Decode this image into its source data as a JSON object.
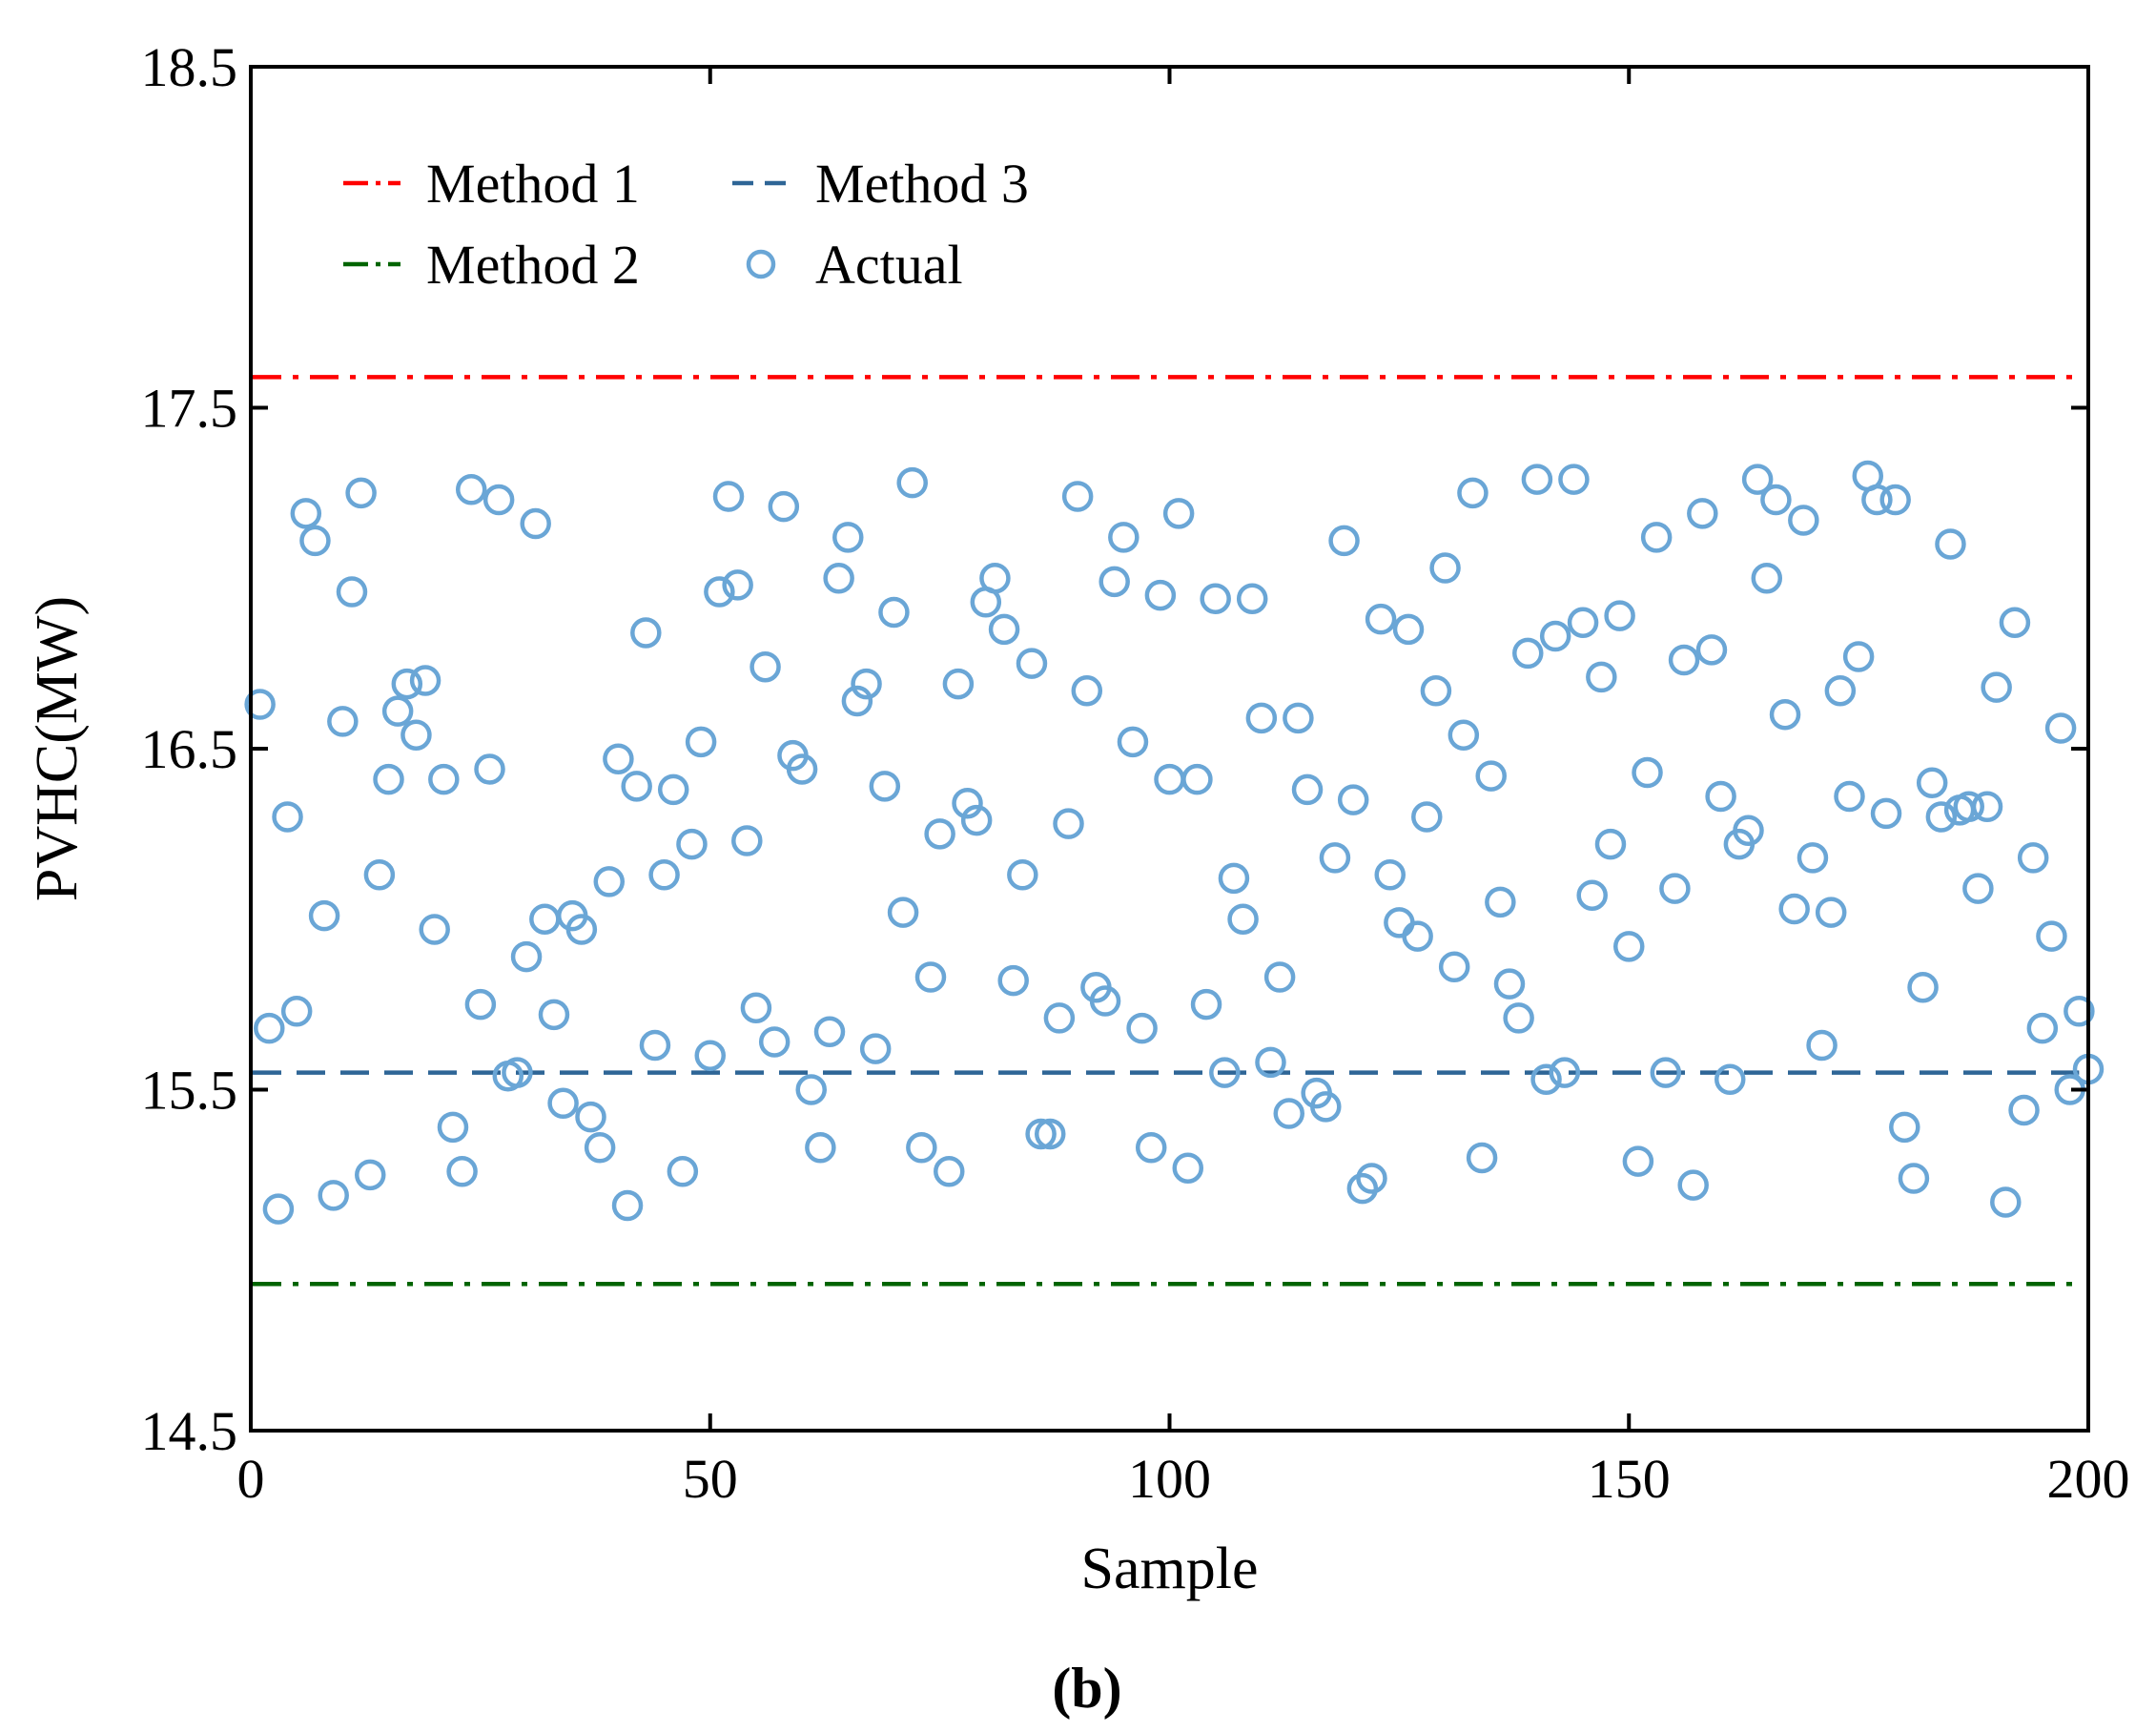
{
  "chart_data": {
    "type": "scatter",
    "title": "",
    "xlabel": "Sample",
    "ylabel": "PVHC(MW)",
    "xlim": [
      0,
      200
    ],
    "ylim": [
      14.5,
      18.5
    ],
    "xticks": [
      0,
      50,
      100,
      150,
      200
    ],
    "xtick_labels": [
      "0",
      "50",
      "100",
      "150",
      "200"
    ],
    "yticks": [
      14.5,
      15.5,
      16.5,
      17.5,
      18.5
    ],
    "ytick_labels": [
      "14.5",
      "15.5",
      "16.5",
      "17.5",
      "18.5"
    ],
    "grid": false,
    "legend": {
      "placement": "top-left",
      "columns": 2,
      "entries": [
        "Method 1",
        "Method 2",
        "Method 3",
        "Actual"
      ]
    },
    "caption": "(b)",
    "lines": [
      {
        "name": "Method 1",
        "value": 17.59,
        "style": "dash-dot",
        "color": "#ff0000"
      },
      {
        "name": "Method 2",
        "value": 14.93,
        "style": "dash-dot",
        "color": "#006400"
      },
      {
        "name": "Method 3",
        "value": 15.55,
        "style": "dashed",
        "color": "#2e6596"
      }
    ],
    "series": [
      {
        "name": "Actual",
        "marker": "open-circle",
        "color": "#6aa6d6",
        "x": [
          1,
          2,
          3,
          4,
          5,
          6,
          7,
          8,
          9,
          10,
          11,
          12,
          13,
          14,
          15,
          16,
          17,
          18,
          19,
          20,
          21,
          22,
          23,
          24,
          25,
          26,
          27,
          28,
          29,
          30,
          31,
          32,
          33,
          34,
          35,
          36,
          37,
          38,
          39,
          40,
          41,
          42,
          43,
          44,
          45,
          46,
          47,
          48,
          49,
          50,
          51,
          52,
          53,
          54,
          55,
          56,
          57,
          58,
          59,
          60,
          61,
          62,
          63,
          64,
          65,
          66,
          67,
          68,
          69,
          70,
          71,
          72,
          73,
          74,
          75,
          76,
          77,
          78,
          79,
          80,
          81,
          82,
          83,
          84,
          85,
          86,
          87,
          88,
          89,
          90,
          91,
          92,
          93,
          94,
          95,
          96,
          97,
          98,
          99,
          100,
          101,
          102,
          103,
          104,
          105,
          106,
          107,
          108,
          109,
          110,
          111,
          112,
          113,
          114,
          115,
          116,
          117,
          118,
          119,
          120,
          121,
          122,
          123,
          124,
          125,
          126,
          127,
          128,
          129,
          130,
          131,
          132,
          133,
          134,
          135,
          136,
          137,
          138,
          139,
          140,
          141,
          142,
          143,
          144,
          145,
          146,
          147,
          148,
          149,
          150,
          151,
          152,
          153,
          154,
          155,
          156,
          157,
          158,
          159,
          160,
          161,
          162,
          163,
          164,
          165,
          166,
          167,
          168,
          169,
          170,
          171,
          172,
          173,
          174,
          175,
          176,
          177,
          178,
          179,
          180,
          181,
          182,
          183,
          184,
          185,
          186,
          187,
          188,
          189,
          190,
          191,
          192,
          193,
          194,
          195,
          196,
          197,
          198,
          199,
          200
        ],
        "values": [
          16.63,
          15.68,
          15.15,
          16.3,
          15.73,
          17.19,
          17.11,
          16.01,
          15.19,
          16.58,
          16.96,
          17.25,
          15.25,
          16.13,
          16.41,
          16.61,
          16.69,
          16.54,
          16.7,
          15.97,
          16.41,
          15.39,
          15.26,
          17.26,
          15.75,
          16.44,
          17.23,
          15.54,
          15.55,
          15.89,
          17.16,
          16.0,
          15.72,
          15.46,
          16.01,
          15.97,
          15.42,
          15.33,
          16.11,
          16.47,
          15.16,
          16.39,
          16.84,
          15.63,
          16.13,
          16.38,
          15.26,
          16.22,
          16.52,
          15.6,
          16.96,
          17.24,
          16.98,
          16.23,
          15.74,
          16.74,
          15.64,
          17.21,
          16.48,
          16.44,
          15.5,
          15.33,
          15.67,
          17.0,
          17.12,
          16.64,
          16.69,
          15.62,
          16.39,
          16.9,
          16.02,
          17.28,
          15.33,
          15.83,
          16.25,
          15.26,
          16.69,
          16.34,
          16.29,
          16.93,
          17.0,
          16.85,
          15.82,
          16.13,
          16.75,
          15.37,
          15.37,
          15.71,
          16.28,
          17.24,
          16.67,
          15.8,
          15.76,
          16.99,
          17.12,
          16.52,
          15.68,
          15.33,
          16.95,
          16.41,
          17.19,
          15.27,
          16.41,
          15.75,
          16.94,
          15.55,
          16.12,
          16.0,
          16.94,
          16.59,
          15.58,
          15.83,
          15.43,
          16.59,
          16.38,
          15.49,
          15.45,
          16.18,
          17.11,
          16.35,
          15.21,
          15.24,
          16.88,
          16.13,
          15.99,
          16.85,
          15.95,
          16.3,
          16.67,
          17.03,
          15.86,
          16.54,
          17.25,
          15.3,
          16.42,
          16.05,
          15.81,
          15.71,
          16.78,
          17.29,
          15.53,
          16.83,
          15.55,
          17.29,
          16.87,
          16.07,
          16.71,
          16.22,
          16.89,
          15.92,
          15.29,
          16.43,
          17.12,
          15.55,
          16.09,
          16.76,
          15.22,
          17.19,
          16.79,
          16.36,
          15.53,
          16.22,
          16.26,
          17.29,
          17.0,
          17.23,
          16.6,
          16.03,
          17.17,
          16.18,
          15.63,
          16.02,
          16.67,
          16.36,
          16.77,
          17.3,
          17.23,
          16.31,
          17.23,
          15.39,
          15.24,
          15.8,
          16.4,
          16.3,
          17.1,
          16.32,
          16.33,
          16.09,
          16.33,
          16.68,
          15.17,
          16.87,
          15.44,
          16.18,
          15.68,
          15.95,
          16.56,
          15.5,
          15.73,
          15.56
        ]
      }
    ]
  }
}
